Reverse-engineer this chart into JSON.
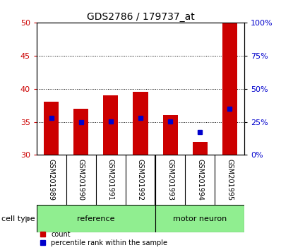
{
  "title": "GDS2786 / 179737_at",
  "categories": [
    "GSM201989",
    "GSM201990",
    "GSM201991",
    "GSM201992",
    "GSM201993",
    "GSM201994",
    "GSM201995"
  ],
  "red_bars": [
    38.0,
    37.0,
    39.0,
    39.5,
    36.0,
    32.0,
    50.0
  ],
  "blue_markers": [
    35.6,
    35.0,
    35.1,
    35.6,
    35.1,
    33.5,
    37.0
  ],
  "y_min": 30,
  "y_max": 50,
  "y_ticks": [
    30,
    35,
    40,
    45,
    50
  ],
  "right_y_ticks": [
    0,
    25,
    50,
    75,
    100
  ],
  "right_y_labels": [
    "0%",
    "25%",
    "50%",
    "75%",
    "100%"
  ],
  "reference_indices": [
    0,
    1,
    2,
    3
  ],
  "motor_neuron_indices": [
    4,
    5,
    6
  ],
  "cell_type_label": "cell type",
  "bar_color": "#cc0000",
  "marker_color": "#0000cc",
  "bg_color": "#ffffff",
  "label_bg_color": "#c8c8c8",
  "green_color": "#90EE90",
  "tick_color_left": "#cc0000",
  "tick_color_right": "#0000cc",
  "legend_count_label": "count",
  "legend_pct_label": "percentile rank within the sample",
  "title_fontsize": 10,
  "tick_fontsize": 8,
  "label_fontsize": 7,
  "celltype_fontsize": 8
}
